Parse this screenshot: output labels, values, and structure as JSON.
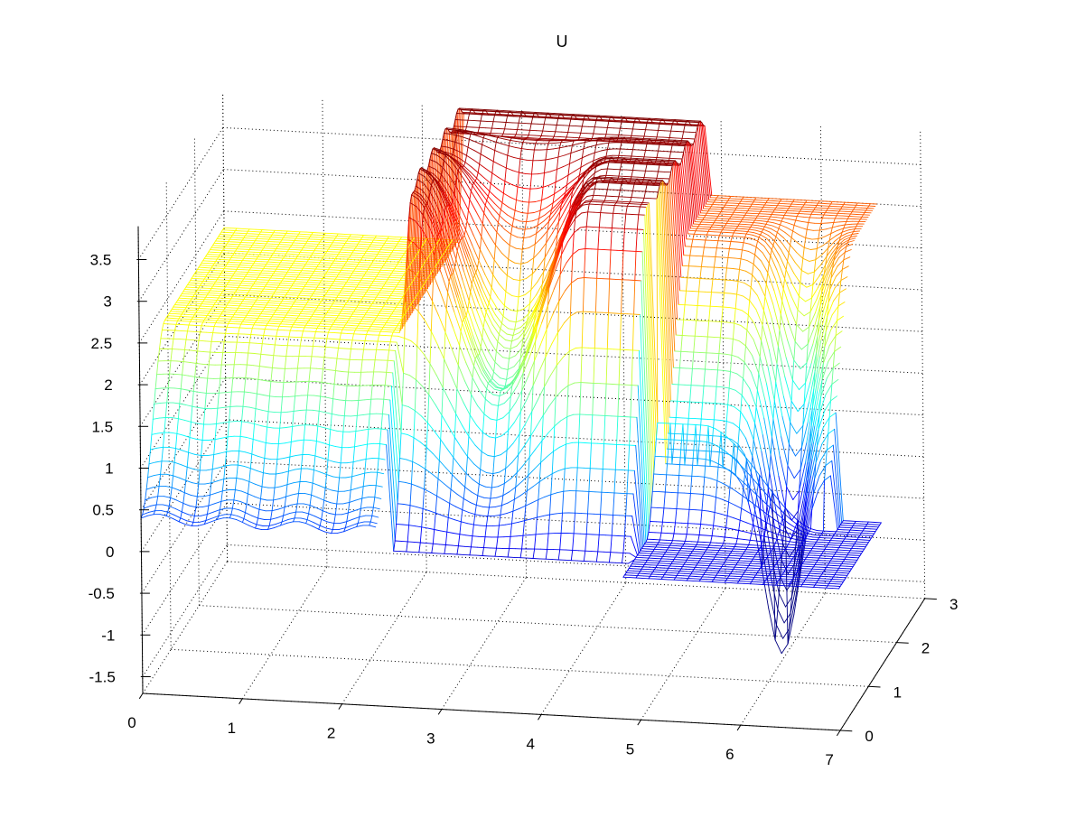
{
  "chart_data": {
    "type": "surface",
    "title": "U",
    "xlabel": "",
    "ylabel": "",
    "zlabel": "",
    "xlim": [
      0,
      7
    ],
    "ylim": [
      0,
      3
    ],
    "zlim": [
      -1.7,
      3.9
    ],
    "x_ticks": [
      "0",
      "1",
      "2",
      "3",
      "4",
      "5",
      "6",
      "7"
    ],
    "y_ticks": [
      "0",
      "1",
      "2",
      "3"
    ],
    "z_ticks": [
      "-1.5",
      "-1",
      "-0.5",
      "0",
      "0.5",
      "1",
      "1.5",
      "2",
      "2.5",
      "3",
      "3.5"
    ],
    "grid": true,
    "colormap": "jet",
    "surface_regions": [
      {
        "name": "left-plateau",
        "x_range": [
          0,
          2.4
        ],
        "y_range": [
          0,
          3
        ],
        "z": 2.3,
        "front_face_z": 0.4
      },
      {
        "name": "central-ridge",
        "x_range": [
          2.4,
          4.9
        ],
        "y_range": [
          0.8,
          3
        ],
        "z_peak": 3.9,
        "trough_z": 1.6
      },
      {
        "name": "right-plateau",
        "x_range": [
          4.9,
          6.4
        ],
        "y_range": [
          1.5,
          3
        ],
        "z": 3.0
      },
      {
        "name": "low-floor",
        "x_range": [
          4.5,
          7
        ],
        "y_range": [
          0,
          1.5
        ],
        "z": 0.0
      }
    ]
  },
  "colors": {
    "background": "#ffffff",
    "axis": "#000000",
    "colormap_low": "#00008f",
    "colormap_mid": "#7fff7f",
    "colormap_high": "#800000"
  }
}
